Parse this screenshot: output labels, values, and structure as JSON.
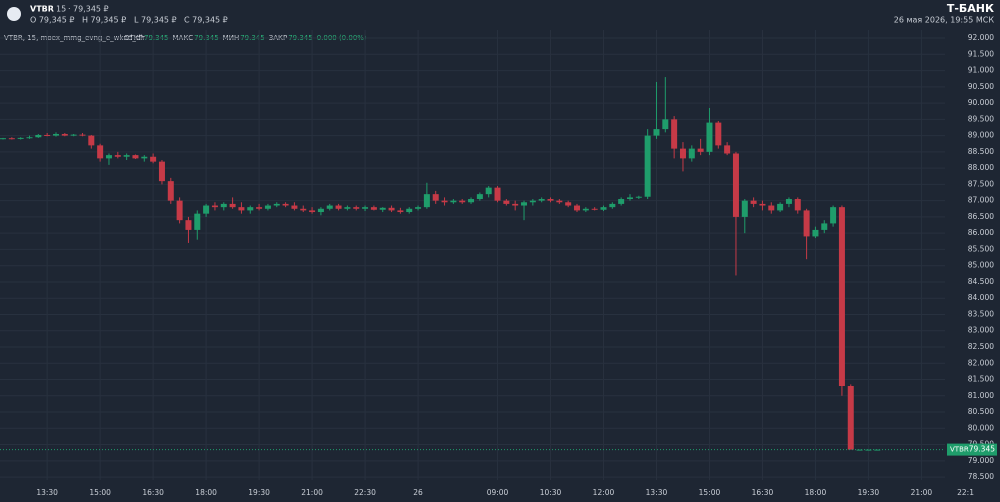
{
  "header": {
    "symbol": "VTBR",
    "interval": "15",
    "price": "79,345 ₽",
    "ohlc": [
      "O 79,345 ₽",
      "H 79,345 ₽",
      "L 79,345 ₽",
      "C 79,345 ₽"
    ],
    "brand": "Т-БАНК",
    "datetime": "26 мая 2026, 19:55 МСК",
    "legend_name": "VTBR, 15, moex_mmg_evng_e_wknd_dlr",
    "legend_fields": [
      {
        "label": "ОТКР",
        "value": "79.345"
      },
      {
        "label": "МАКС",
        "value": "79.345"
      },
      {
        "label": "МИН",
        "value": "79.345"
      },
      {
        "label": "ЗАКР",
        "value": "79.345"
      }
    ],
    "change": "0.000 (0.00%)"
  },
  "chart_data": {
    "type": "candlestick",
    "up_color": "#1f9d6b",
    "down_color": "#c63a47",
    "grid": true,
    "open": [
      88.9,
      88.92,
      88.9,
      88.93,
      88.95,
      89.02,
      89.0,
      89.05,
      89.0,
      89.03,
      89.0,
      88.7,
      88.3,
      88.4,
      88.35,
      88.4,
      88.3,
      88.35,
      88.2,
      87.6,
      87.0,
      86.4,
      86.1,
      86.6,
      86.85,
      86.8,
      86.9,
      86.8,
      86.7,
      86.8,
      86.75,
      86.85,
      86.9,
      86.85,
      86.75,
      86.7,
      86.65,
      86.75,
      86.85,
      86.75,
      86.8,
      86.75,
      86.8,
      86.72,
      86.78,
      86.7,
      86.65,
      86.75,
      86.8,
      87.2,
      87.0,
      86.95,
      87.0,
      86.95,
      87.05,
      87.2,
      87.4,
      87.0,
      86.9,
      86.85,
      86.95,
      87.0,
      87.05,
      87.0,
      86.95,
      86.85,
      86.7,
      86.75,
      86.72,
      86.8,
      86.9,
      87.05,
      87.1,
      87.12,
      89.0,
      89.2,
      89.5,
      88.6,
      88.3,
      88.6,
      88.5,
      89.4,
      88.7,
      88.45,
      86.5,
      87.0,
      86.9,
      86.85,
      86.7,
      86.9,
      87.05,
      86.7,
      85.9,
      86.1,
      86.3,
      86.8,
      81.3,
      79.345,
      79.345,
      79.345
    ],
    "high": [
      88.93,
      88.95,
      88.95,
      89.0,
      89.05,
      89.08,
      89.1,
      89.08,
      89.05,
      89.08,
      89.02,
      88.75,
      88.45,
      88.5,
      88.45,
      88.42,
      88.4,
      88.45,
      88.25,
      87.7,
      87.1,
      86.5,
      86.7,
      86.9,
      86.95,
      86.95,
      87.1,
      86.95,
      86.85,
      86.9,
      86.9,
      86.95,
      86.95,
      86.95,
      86.85,
      86.8,
      86.8,
      86.9,
      86.9,
      86.85,
      86.85,
      86.85,
      86.85,
      86.8,
      86.85,
      86.78,
      86.8,
      86.85,
      87.55,
      87.3,
      87.1,
      87.05,
      87.05,
      87.1,
      87.25,
      87.45,
      87.45,
      87.05,
      87.0,
      87.0,
      87.05,
      87.1,
      87.1,
      87.05,
      87.0,
      86.9,
      86.8,
      86.8,
      86.85,
      86.95,
      87.1,
      87.2,
      87.15,
      89.2,
      90.65,
      90.8,
      89.6,
      88.8,
      88.7,
      88.9,
      89.85,
      89.45,
      88.8,
      88.5,
      87.05,
      87.1,
      87.0,
      86.95,
      86.95,
      87.1,
      87.1,
      86.75,
      86.2,
      86.4,
      86.85,
      86.85,
      81.35,
      79.345,
      79.345,
      79.345
    ],
    "low": [
      88.88,
      88.88,
      88.88,
      88.9,
      88.93,
      88.98,
      88.97,
      88.98,
      88.98,
      88.98,
      88.6,
      88.2,
      88.1,
      88.3,
      88.25,
      88.28,
      88.2,
      88.15,
      87.5,
      86.9,
      86.3,
      85.7,
      85.8,
      86.5,
      86.7,
      86.7,
      86.75,
      86.6,
      86.6,
      86.7,
      86.7,
      86.8,
      86.8,
      86.7,
      86.65,
      86.6,
      86.55,
      86.7,
      86.7,
      86.7,
      86.7,
      86.68,
      86.7,
      86.65,
      86.65,
      86.6,
      86.6,
      86.7,
      86.75,
      86.9,
      86.85,
      86.9,
      86.9,
      86.9,
      87.0,
      87.1,
      86.95,
      86.85,
      86.7,
      86.4,
      86.85,
      86.95,
      86.95,
      86.9,
      86.8,
      86.65,
      86.65,
      86.7,
      86.68,
      86.75,
      86.85,
      87.0,
      87.05,
      87.05,
      88.9,
      89.1,
      88.3,
      87.9,
      88.2,
      88.4,
      88.4,
      88.6,
      88.4,
      84.7,
      86.0,
      86.8,
      86.7,
      86.6,
      86.65,
      86.8,
      86.6,
      85.2,
      85.85,
      86.0,
      86.2,
      81.0,
      79.345,
      79.345,
      79.345,
      79.345
    ],
    "close": [
      88.92,
      88.9,
      88.93,
      88.95,
      89.02,
      89.0,
      89.05,
      89.0,
      89.03,
      89.0,
      88.7,
      88.3,
      88.4,
      88.35,
      88.4,
      88.3,
      88.35,
      88.2,
      87.6,
      87.0,
      86.4,
      86.1,
      86.6,
      86.85,
      86.8,
      86.9,
      86.8,
      86.7,
      86.8,
      86.75,
      86.85,
      86.9,
      86.85,
      86.75,
      86.7,
      86.65,
      86.75,
      86.85,
      86.75,
      86.8,
      86.75,
      86.8,
      86.72,
      86.78,
      86.7,
      86.65,
      86.75,
      86.8,
      87.2,
      87.0,
      86.95,
      87.0,
      86.95,
      87.05,
      87.2,
      87.4,
      87.0,
      86.9,
      86.85,
      86.95,
      87.0,
      87.05,
      87.0,
      86.95,
      86.85,
      86.7,
      86.75,
      86.72,
      86.8,
      86.9,
      87.05,
      87.1,
      87.12,
      89.0,
      89.2,
      89.5,
      88.6,
      88.3,
      88.6,
      88.5,
      89.4,
      88.7,
      88.45,
      86.5,
      87.0,
      86.9,
      86.85,
      86.7,
      86.9,
      87.05,
      86.7,
      85.9,
      86.1,
      86.3,
      86.8,
      81.3,
      79.345,
      79.345,
      79.345,
      79.345
    ],
    "xlim": [
      -0.34,
      112.9
    ],
    "xticks": [
      {
        "value": 5,
        "label": "13:30"
      },
      {
        "value": 11,
        "label": "15:00"
      },
      {
        "value": 17,
        "label": "16:30"
      },
      {
        "value": 23,
        "label": "18:00"
      },
      {
        "value": 29,
        "label": "19:30"
      },
      {
        "value": 35,
        "label": "21:00"
      },
      {
        "value": 41,
        "label": "22:30"
      },
      {
        "value": 47,
        "label": "26"
      },
      {
        "value": 56,
        "label": "09:00"
      },
      {
        "value": 62,
        "label": "10:30"
      },
      {
        "value": 68,
        "label": "12:00"
      },
      {
        "value": 74,
        "label": "13:30"
      },
      {
        "value": 80,
        "label": "15:00"
      },
      {
        "value": 86,
        "label": "16:30"
      },
      {
        "value": 92,
        "label": "18:00"
      },
      {
        "value": 98,
        "label": "19:30"
      },
      {
        "value": 104,
        "label": "21:00"
      },
      {
        "value": 109,
        "label": "22:1"
      }
    ],
    "ylim": [
      78.41,
      93.17
    ],
    "yticks": [
      {
        "value": 78.5,
        "label": "78.500"
      },
      {
        "value": 79,
        "label": "79.000"
      },
      {
        "value": 79.5,
        "label": "79.500"
      },
      {
        "value": 80,
        "label": "80.000"
      },
      {
        "value": 80.5,
        "label": "80.500"
      },
      {
        "value": 81,
        "label": "81.000"
      },
      {
        "value": 81.5,
        "label": "81.500"
      },
      {
        "value": 82,
        "label": "82.000"
      },
      {
        "value": 82.5,
        "label": "82.500"
      },
      {
        "value": 83,
        "label": "83.000"
      },
      {
        "value": 83.5,
        "label": "83.500"
      },
      {
        "value": 84,
        "label": "84.000"
      },
      {
        "value": 84.5,
        "label": "84.500"
      },
      {
        "value": 85,
        "label": "85.000"
      },
      {
        "value": 85.5,
        "label": "85.500"
      },
      {
        "value": 86,
        "label": "86.000"
      },
      {
        "value": 86.5,
        "label": "86.500"
      },
      {
        "value": 87,
        "label": "87.000"
      },
      {
        "value": 87.5,
        "label": "87.500"
      },
      {
        "value": 88,
        "label": "88.000"
      },
      {
        "value": 88.5,
        "label": "88.500"
      },
      {
        "value": 89,
        "label": "89.000"
      },
      {
        "value": 89.5,
        "label": "89.500"
      },
      {
        "value": 90,
        "label": "90.000"
      },
      {
        "value": 90.5,
        "label": "90.500"
      },
      {
        "value": 91,
        "label": "91.000"
      },
      {
        "value": 91.5,
        "label": "91.500"
      },
      {
        "value": 92,
        "label": "92.000"
      }
    ],
    "last_price": {
      "symbol": "VTBR",
      "value": 79.345
    }
  }
}
